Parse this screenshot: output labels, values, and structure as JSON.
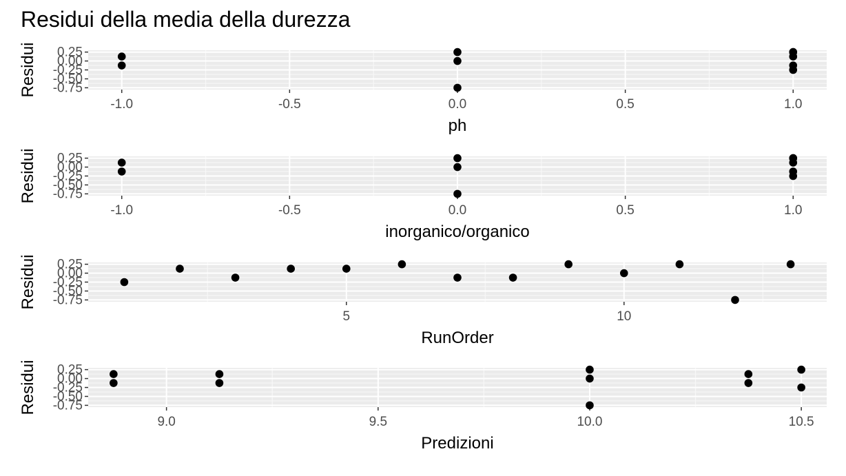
{
  "title": "Residui della media della durezza",
  "colors": {
    "panel": "#ebebeb",
    "grid_major": "#ffffff",
    "grid_minor": "#f7f7f7",
    "point": "#000000",
    "tick": "#4d4d4d",
    "text": "#000000"
  },
  "chart_data": [
    {
      "type": "scatter",
      "xlabel": "ph",
      "ylabel": "Residui",
      "xlim": [
        -1.1,
        1.1
      ],
      "ylim": [
        -0.8,
        0.3
      ],
      "x_ticks": [
        -1.0,
        -0.5,
        0.0,
        0.5,
        1.0
      ],
      "x_tick_labels": [
        "-1.0",
        "-0.5",
        "0.0",
        "0.5",
        "1.0"
      ],
      "y_ticks": [
        0.25,
        0.0,
        -0.25,
        -0.5,
        -0.75
      ],
      "y_tick_labels": [
        "0.25",
        "0.00",
        "-0.25",
        "-0.50",
        "-0.75"
      ],
      "x": [
        -1,
        -1,
        0,
        0,
        0,
        1,
        1,
        1,
        1,
        1
      ],
      "y": [
        0.125,
        -0.125,
        0.25,
        0.0,
        -0.75,
        0.25,
        0.25,
        0.125,
        -0.125,
        -0.25
      ]
    },
    {
      "type": "scatter",
      "xlabel": "inorganico/organico",
      "ylabel": "Residui",
      "xlim": [
        -1.1,
        1.1
      ],
      "ylim": [
        -0.8,
        0.3
      ],
      "x_ticks": [
        -1.0,
        -0.5,
        0.0,
        0.5,
        1.0
      ],
      "x_tick_labels": [
        "-1.0",
        "-0.5",
        "0.0",
        "0.5",
        "1.0"
      ],
      "y_ticks": [
        0.25,
        0.0,
        -0.25,
        -0.5,
        -0.75
      ],
      "y_tick_labels": [
        "0.25",
        "0.00",
        "-0.25",
        "-0.50",
        "-0.75"
      ],
      "x": [
        -1,
        -1,
        0,
        0,
        0,
        1,
        1,
        1,
        1,
        1
      ],
      "y": [
        0.125,
        -0.125,
        0.25,
        0.0,
        -0.75,
        0.25,
        0.25,
        0.125,
        -0.125,
        -0.25
      ]
    },
    {
      "type": "scatter",
      "xlabel": "RunOrder",
      "ylabel": "Residui",
      "xlim": [
        0.35,
        13.65
      ],
      "ylim": [
        -0.8,
        0.3
      ],
      "x_ticks": [
        5,
        10
      ],
      "x_tick_labels": [
        "5",
        "10"
      ],
      "y_ticks": [
        0.25,
        0.0,
        -0.25,
        -0.5,
        -0.75
      ],
      "y_tick_labels": [
        "0.25",
        "0.00",
        "-0.25",
        "-0.50",
        "-0.75"
      ],
      "x": [
        1,
        2,
        3,
        4,
        5,
        6,
        7,
        8,
        9,
        10,
        11,
        12,
        13
      ],
      "y": [
        -0.25,
        0.125,
        -0.125,
        0.125,
        0.125,
        0.25,
        -0.125,
        -0.125,
        0.25,
        0.0,
        0.25,
        -0.75,
        0.25
      ]
    },
    {
      "type": "scatter",
      "xlabel": "Predizioni",
      "ylabel": "Residui",
      "xlim": [
        8.815,
        10.56
      ],
      "ylim": [
        -0.8,
        0.3
      ],
      "x_ticks": [
        9.0,
        9.5,
        10.0,
        10.5
      ],
      "x_tick_labels": [
        "9.0",
        "9.5",
        "10.0",
        "10.5"
      ],
      "y_ticks": [
        0.25,
        0.0,
        -0.25,
        -0.5,
        -0.75
      ],
      "y_tick_labels": [
        "0.25",
        "0.00",
        "-0.25",
        "-0.50",
        "-0.75"
      ],
      "x": [
        8.875,
        8.875,
        9.125,
        9.125,
        10.0,
        10.0,
        10.0,
        10.375,
        10.375,
        10.5,
        10.5
      ],
      "y": [
        0.125,
        -0.125,
        0.125,
        -0.125,
        0.25,
        0.0,
        -0.75,
        0.125,
        -0.125,
        0.25,
        -0.25
      ]
    }
  ]
}
